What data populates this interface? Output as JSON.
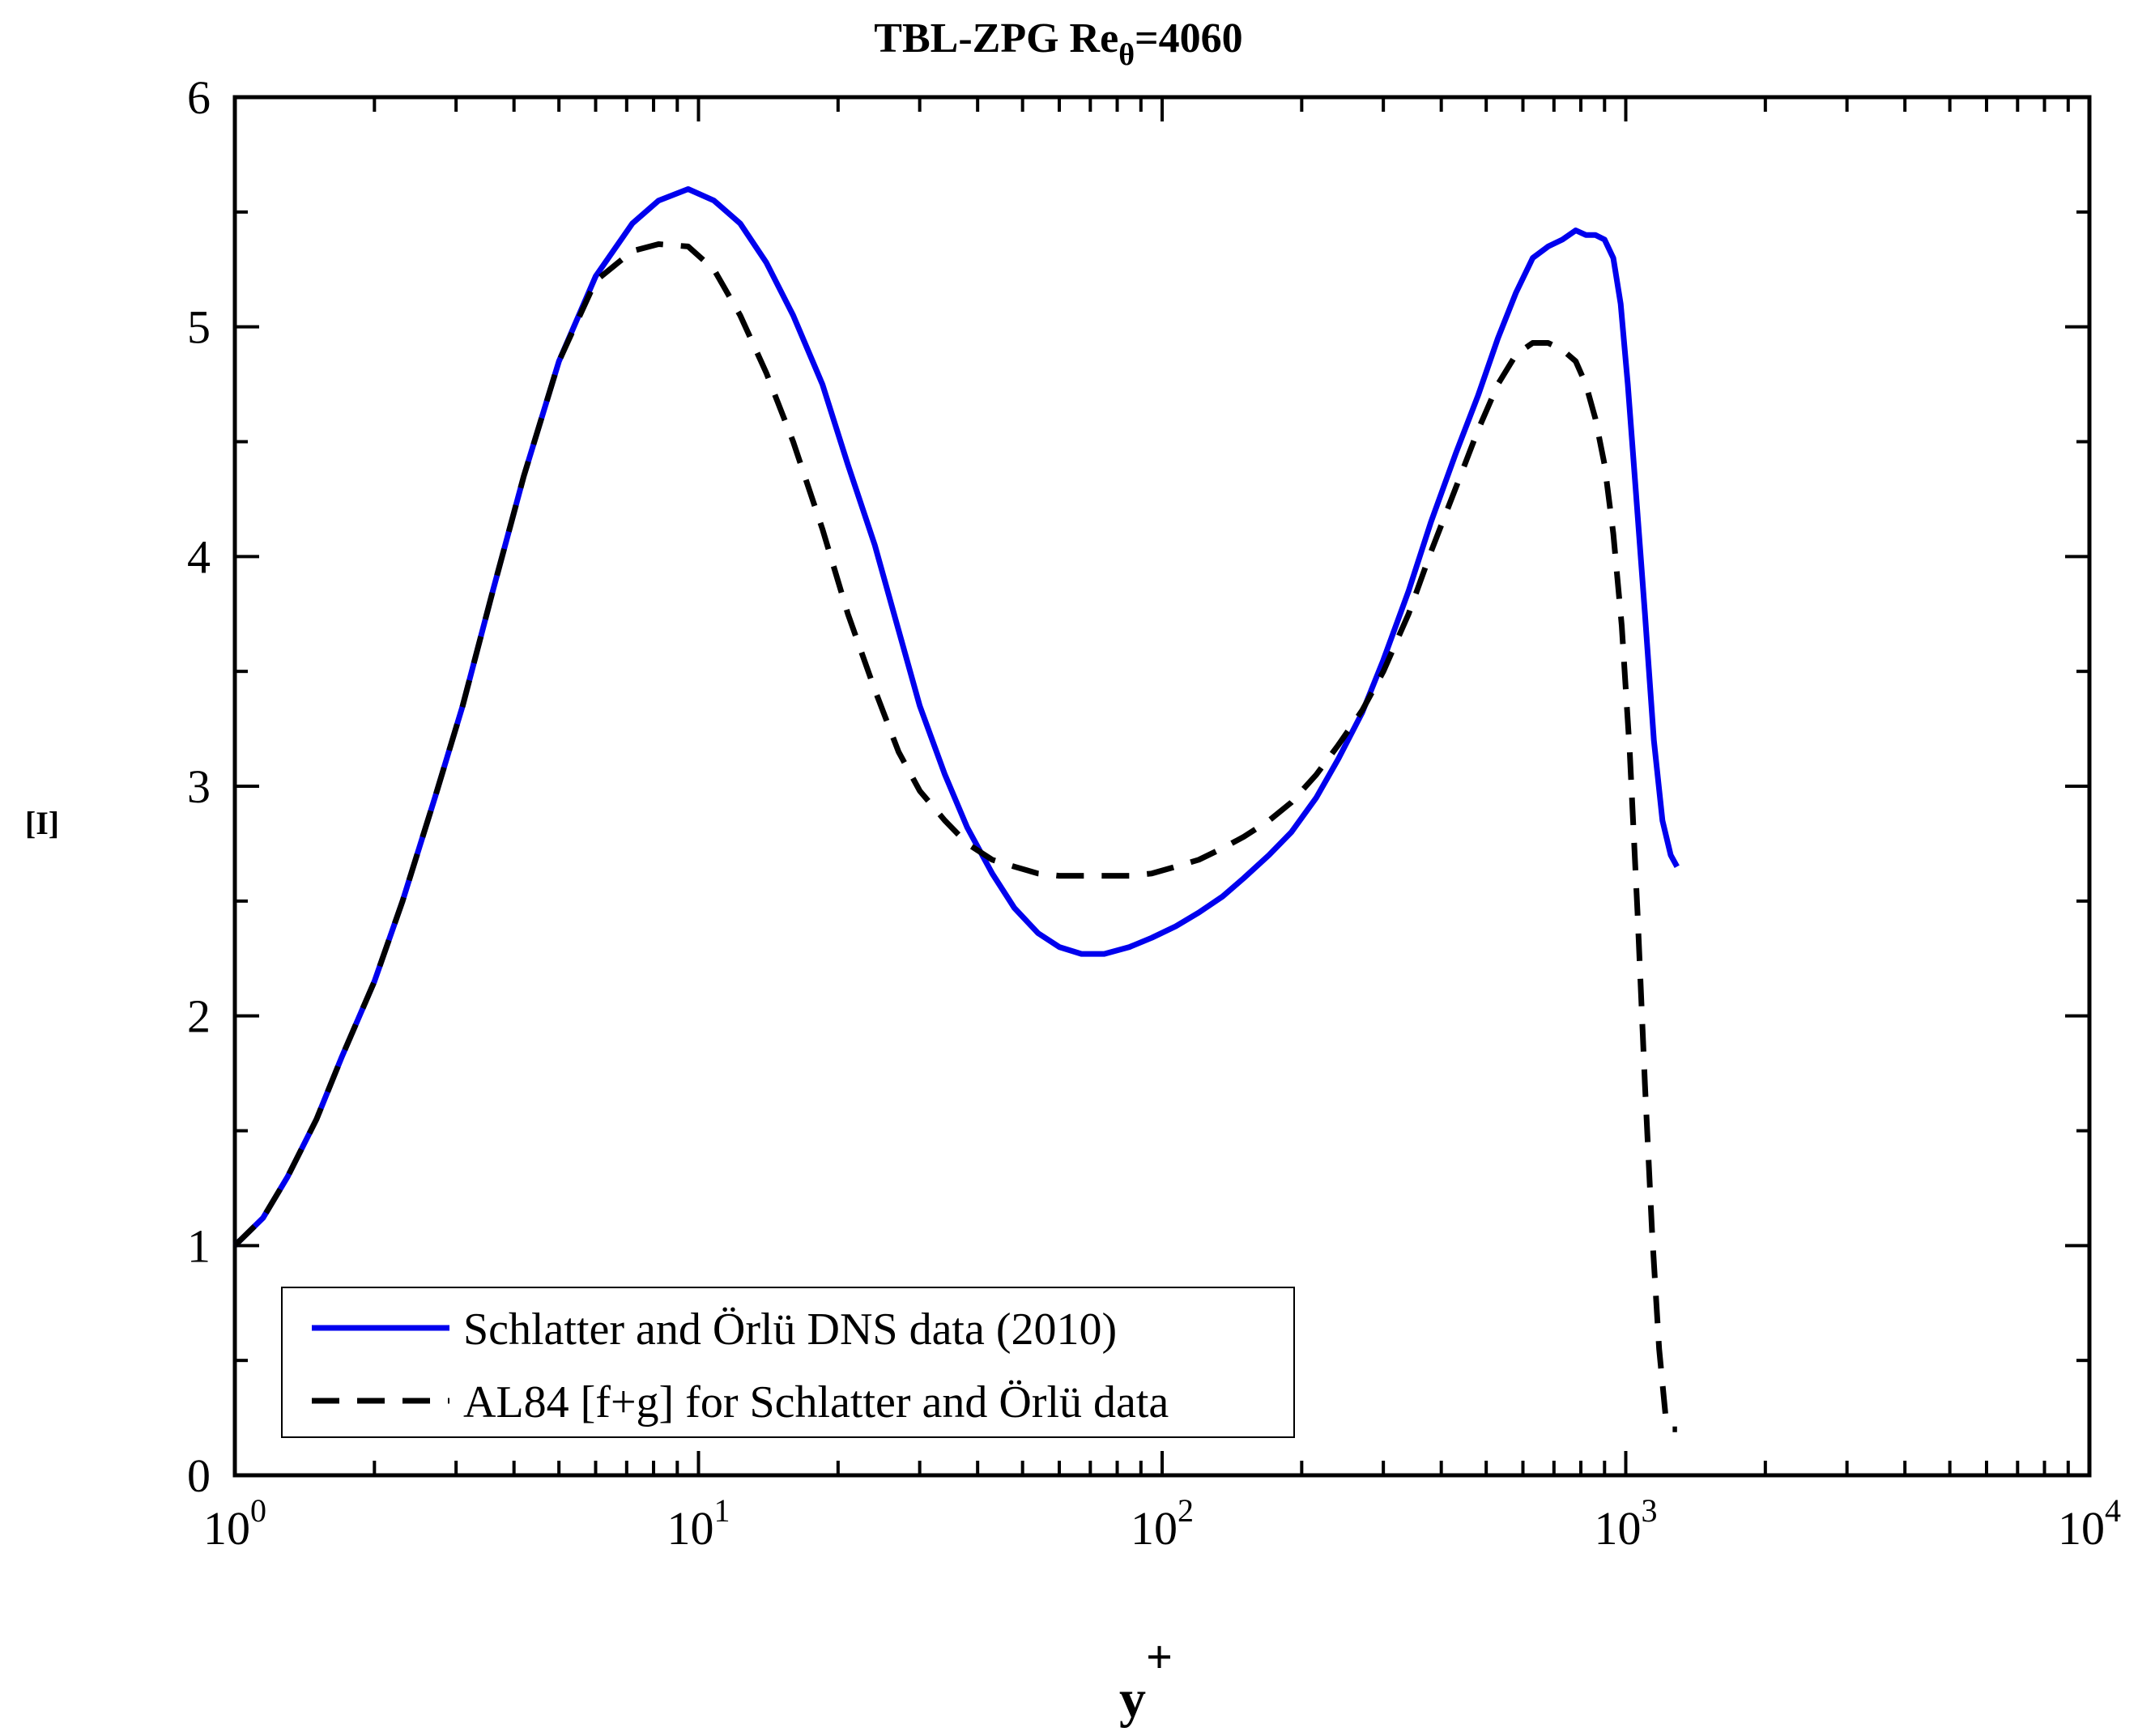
{
  "chart_data": {
    "type": "line",
    "title": "TBL-ZPG Re",
    "title_subscript": "θ",
    "title_suffix": "=4060",
    "xlabel": "y",
    "xlabel_superscript": "+",
    "ylabel": "[I]",
    "xscale": "log",
    "xlim": [
      1,
      10000
    ],
    "ylim": [
      0,
      6
    ],
    "x_tick_labels": [
      {
        "base": "10",
        "exp": "0"
      },
      {
        "base": "10",
        "exp": "1"
      },
      {
        "base": "10",
        "exp": "2"
      },
      {
        "base": "10",
        "exp": "3"
      },
      {
        "base": "10",
        "exp": "4"
      }
    ],
    "y_tick_labels": [
      "0",
      "1",
      "2",
      "3",
      "4",
      "5",
      "6"
    ],
    "legend_position": "bottom-left",
    "series": [
      {
        "name": "Schlatter and Örlü DNS data (2010)",
        "color": "#0000ee",
        "style": "solid",
        "x": [
          1.0,
          1.15,
          1.3,
          1.5,
          1.7,
          2.0,
          2.3,
          2.7,
          3.1,
          3.6,
          4.2,
          5.0,
          6.0,
          7.2,
          8.2,
          9.5,
          10.8,
          12.3,
          14,
          16,
          18.5,
          21,
          24,
          27,
          30,
          34,
          38,
          43,
          48,
          54,
          60,
          67,
          75,
          85,
          95,
          107,
          120,
          135,
          150,
          170,
          190,
          215,
          240,
          270,
          300,
          340,
          380,
          430,
          480,
          530,
          580,
          630,
          680,
          730,
          780,
          820,
          860,
          900,
          940,
          975,
          1010,
          1050,
          1100,
          1150,
          1200,
          1250,
          1290
        ],
        "y": [
          1.0,
          1.12,
          1.3,
          1.55,
          1.82,
          2.15,
          2.5,
          2.95,
          3.35,
          3.85,
          4.35,
          4.85,
          5.22,
          5.45,
          5.55,
          5.6,
          5.55,
          5.45,
          5.28,
          5.05,
          4.75,
          4.4,
          4.05,
          3.68,
          3.35,
          3.05,
          2.82,
          2.62,
          2.47,
          2.36,
          2.3,
          2.27,
          2.27,
          2.3,
          2.34,
          2.39,
          2.45,
          2.52,
          2.6,
          2.7,
          2.8,
          2.95,
          3.12,
          3.32,
          3.55,
          3.85,
          4.15,
          4.45,
          4.7,
          4.95,
          5.15,
          5.3,
          5.35,
          5.38,
          5.42,
          5.4,
          5.4,
          5.38,
          5.3,
          5.1,
          4.75,
          4.3,
          3.75,
          3.2,
          2.85,
          2.7,
          2.65
        ]
      },
      {
        "name": "AL84 [f+g] for Schlatter and Örlü data",
        "color": "#000000",
        "style": "dashed",
        "x": [
          1.0,
          1.15,
          1.3,
          1.5,
          1.7,
          2.0,
          2.3,
          2.7,
          3.1,
          3.6,
          4.2,
          5.0,
          6.0,
          7.2,
          8.2,
          9.5,
          10.8,
          12.3,
          14,
          16,
          18.5,
          21,
          24,
          27,
          30,
          34,
          38,
          43,
          48,
          54,
          60,
          67,
          75,
          85,
          95,
          107,
          120,
          135,
          150,
          170,
          190,
          215,
          240,
          270,
          300,
          340,
          380,
          430,
          480,
          530,
          580,
          630,
          680,
          730,
          780,
          820,
          860,
          900,
          940,
          980,
          1020,
          1060,
          1100,
          1140,
          1180,
          1220,
          1260,
          1290
        ],
        "y": [
          1.0,
          1.12,
          1.3,
          1.55,
          1.82,
          2.15,
          2.5,
          2.95,
          3.35,
          3.85,
          4.35,
          4.85,
          5.2,
          5.33,
          5.36,
          5.35,
          5.25,
          5.05,
          4.8,
          4.5,
          4.12,
          3.75,
          3.42,
          3.15,
          2.98,
          2.85,
          2.75,
          2.68,
          2.65,
          2.62,
          2.61,
          2.61,
          2.61,
          2.61,
          2.62,
          2.65,
          2.68,
          2.73,
          2.78,
          2.85,
          2.93,
          3.05,
          3.18,
          3.33,
          3.5,
          3.75,
          4.02,
          4.3,
          4.55,
          4.75,
          4.88,
          4.93,
          4.93,
          4.9,
          4.85,
          4.75,
          4.6,
          4.4,
          4.1,
          3.7,
          3.15,
          2.45,
          1.7,
          1.05,
          0.55,
          0.25,
          0.2,
          0.2
        ]
      }
    ]
  }
}
